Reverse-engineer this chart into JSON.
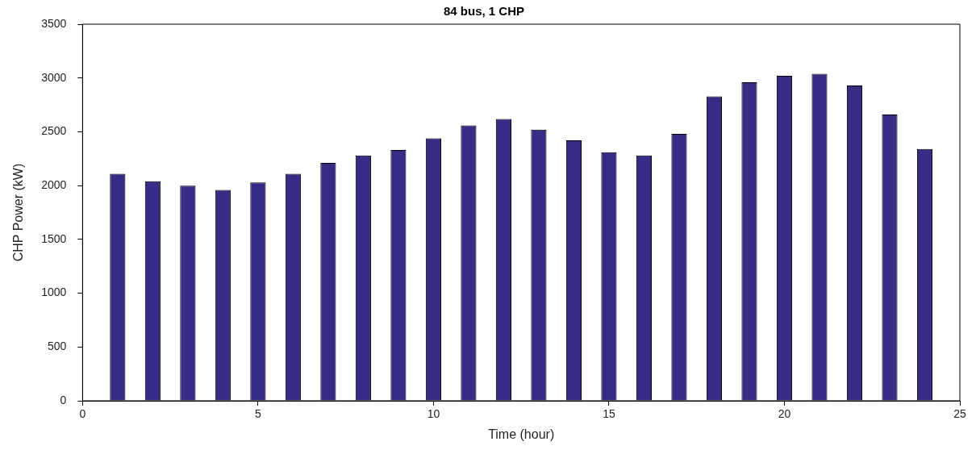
{
  "chart_data": {
    "type": "bar",
    "title": "84 bus, 1 CHP",
    "xlabel": "Time (hour)",
    "ylabel": "CHP Power (kW)",
    "x": [
      1,
      2,
      3,
      4,
      5,
      6,
      7,
      8,
      9,
      10,
      11,
      12,
      13,
      14,
      15,
      16,
      17,
      18,
      19,
      20,
      21,
      22,
      23,
      24
    ],
    "values": [
      2110,
      2040,
      2000,
      1960,
      2030,
      2110,
      2210,
      2280,
      2330,
      2440,
      2560,
      2620,
      2520,
      2420,
      2310,
      2280,
      2480,
      2830,
      2960,
      3020,
      3040,
      2930,
      2660,
      2340
    ],
    "color": "#372c85",
    "xlim": [
      0,
      25
    ],
    "xticks": [
      0,
      5,
      10,
      15,
      20,
      25
    ],
    "ylim": [
      0,
      3500
    ],
    "yticks": [
      0,
      500,
      1000,
      1500,
      2000,
      2500,
      3000,
      3500
    ],
    "grid": false,
    "legend": false
  }
}
